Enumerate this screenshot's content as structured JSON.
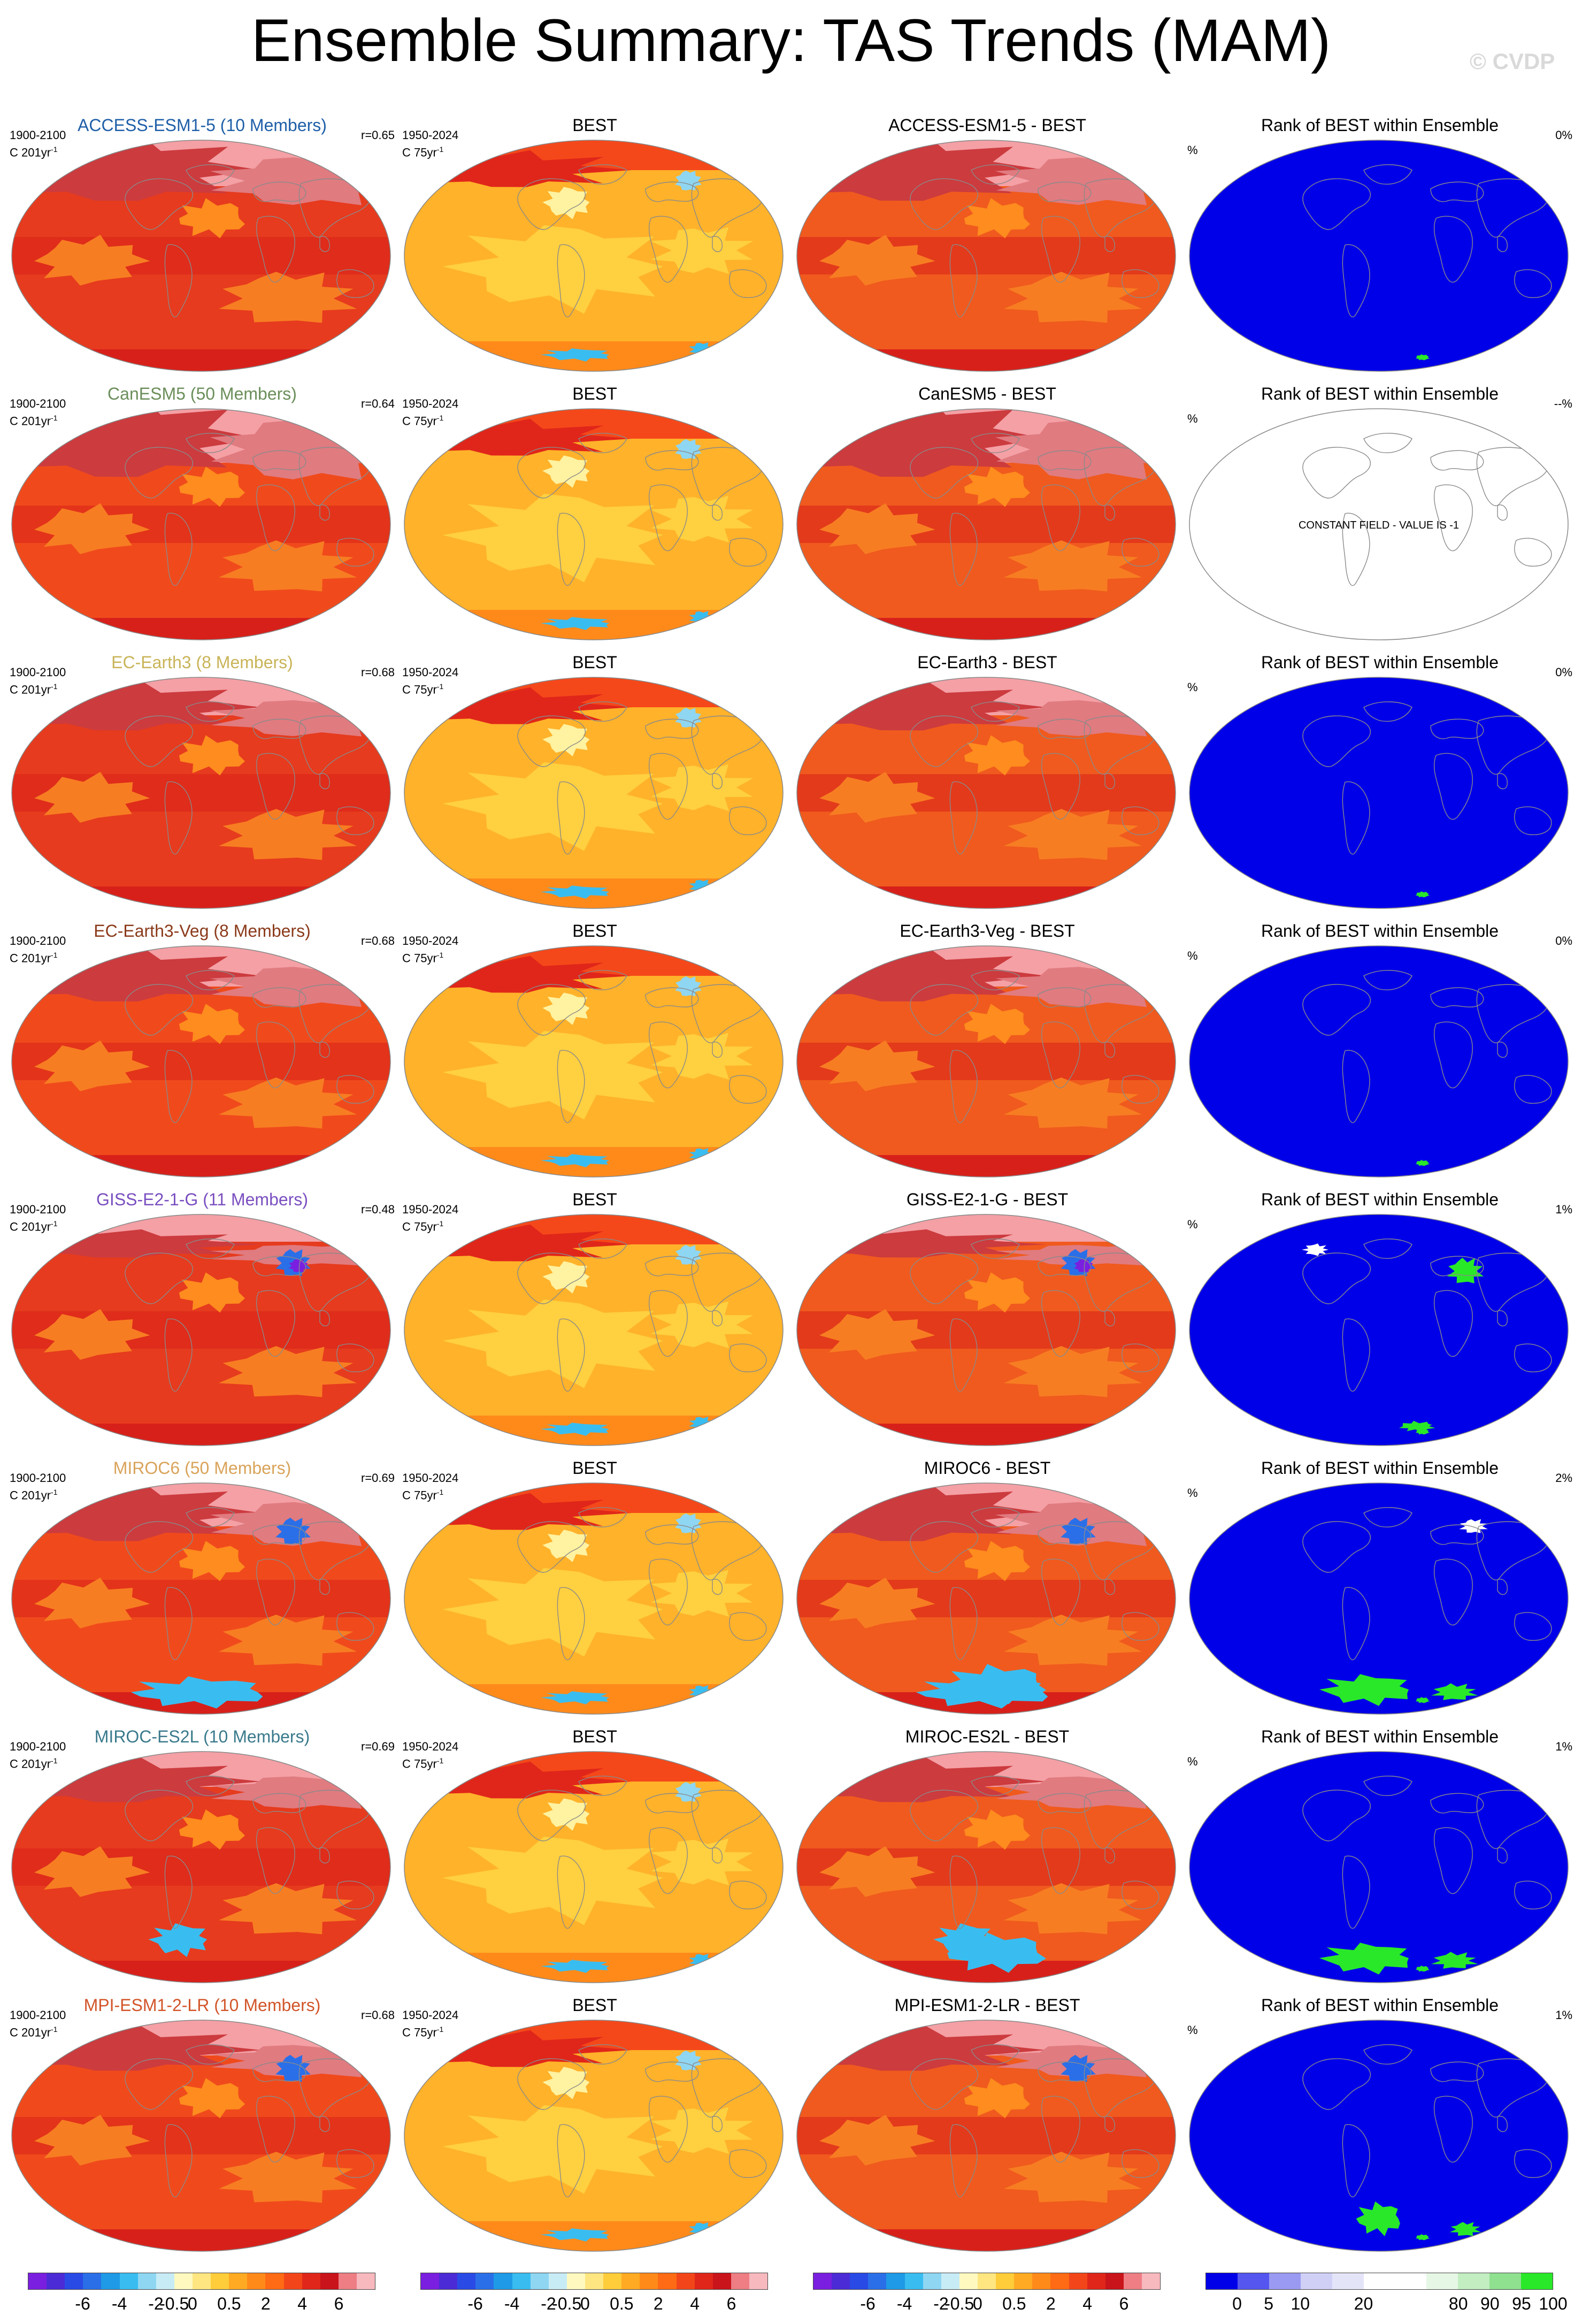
{
  "title": "Ensemble Summary: TAS Trends (MAM)",
  "watermark": "© CVDP",
  "rows": [
    {
      "model": "ACCESS-ESM1-5 (10 Members)",
      "model_color": "#1f5fa8",
      "diff_title": "ACCESS-ESM1-5 - BEST",
      "corr": "r=0.65",
      "rank": "0%",
      "rank_mode": "blue",
      "spots": []
    },
    {
      "model": "CanESM5 (50 Members)",
      "model_color": "#6b8e5a",
      "diff_title": "CanESM5 - BEST",
      "corr": "r=0.64",
      "rank": "--%",
      "rank_mode": "constant",
      "spots": []
    },
    {
      "model": "EC-Earth3 (8 Members)",
      "model_color": "#c9b458",
      "diff_title": "EC-Earth3 - BEST",
      "corr": "r=0.68",
      "rank": "0%",
      "rank_mode": "blue",
      "spots": []
    },
    {
      "model": "EC-Earth3-Veg (8 Members)",
      "model_color": "#8b3a1a",
      "diff_title": "EC-Earth3-Veg - BEST",
      "corr": "r=0.68",
      "rank": "0%",
      "rank_mode": "blue",
      "spots": []
    },
    {
      "model": "GISS-E2-1-G (11 Members)",
      "model_color": "#7a4fc0",
      "diff_title": "GISS-E2-1-G - BEST",
      "corr": "r=0.48",
      "rank": "1%",
      "rank_mode": "blue",
      "spots": [
        "greenland",
        "antarctic-small"
      ]
    },
    {
      "model": "MIROC6 (50 Members)",
      "model_color": "#d9a35a",
      "diff_title": "MIROC6 - BEST",
      "corr": "r=0.69",
      "rank": "2%",
      "rank_mode": "blue",
      "spots": [
        "greenland-white",
        "antarctic-large"
      ]
    },
    {
      "model": "MIROC-ES2L (10 Members)",
      "model_color": "#3a7a8c",
      "diff_title": "MIROC-ES2L - BEST",
      "corr": "r=0.69",
      "rank": "1%",
      "rank_mode": "blue",
      "spots": [
        "antarctic-large"
      ]
    },
    {
      "model": "MPI-ESM1-2-LR (10 Members)",
      "model_color": "#d2552a",
      "diff_title": "MPI-ESM1-2-LR - BEST",
      "corr": "r=0.68",
      "rank": "1%",
      "rank_mode": "blue",
      "spots": [
        "antarctic-medium"
      ]
    }
  ],
  "labels": {
    "model_period": "1900-2100",
    "model_units": "C 201yr",
    "obs_title": "BEST",
    "obs_period": "1950-2024",
    "obs_units": "C 75yr",
    "units_exponent": "-1",
    "rank_title": "Rank of BEST within Ensemble",
    "rank_percent": "%",
    "constant_field": "CONSTANT FIELD - VALUE IS -1"
  },
  "colorbars": {
    "trend": {
      "colors": [
        "#7a1fe0",
        "#4b2bd6",
        "#2a4ae6",
        "#2a6fe8",
        "#1f9ae6",
        "#39bdf0",
        "#8fd6f2",
        "#c8ecf6",
        "#fff9c0",
        "#ffe680",
        "#ffcc3a",
        "#ffaa22",
        "#ff8a1a",
        "#ff6a14",
        "#f2461a",
        "#e0261a",
        "#c8141a",
        "#ee7d84",
        "#f7b8be"
      ],
      "tick_labels": [
        "-6",
        "-4",
        "-2",
        "-0.5",
        "0",
        "0.5",
        "2",
        "4",
        "6"
      ]
    },
    "rank": {
      "colors": [
        "#0000e8",
        "#5555ef",
        "#9a9af2",
        "#d0d0f7",
        "#e4e4f9",
        "#ffffff",
        "#ffffff",
        "#e6f7e6",
        "#c2eec2",
        "#8fe08f",
        "#29e829"
      ],
      "tick_labels": [
        "0",
        "5",
        "10",
        "20",
        "80",
        "90",
        "95",
        "100"
      ]
    }
  }
}
